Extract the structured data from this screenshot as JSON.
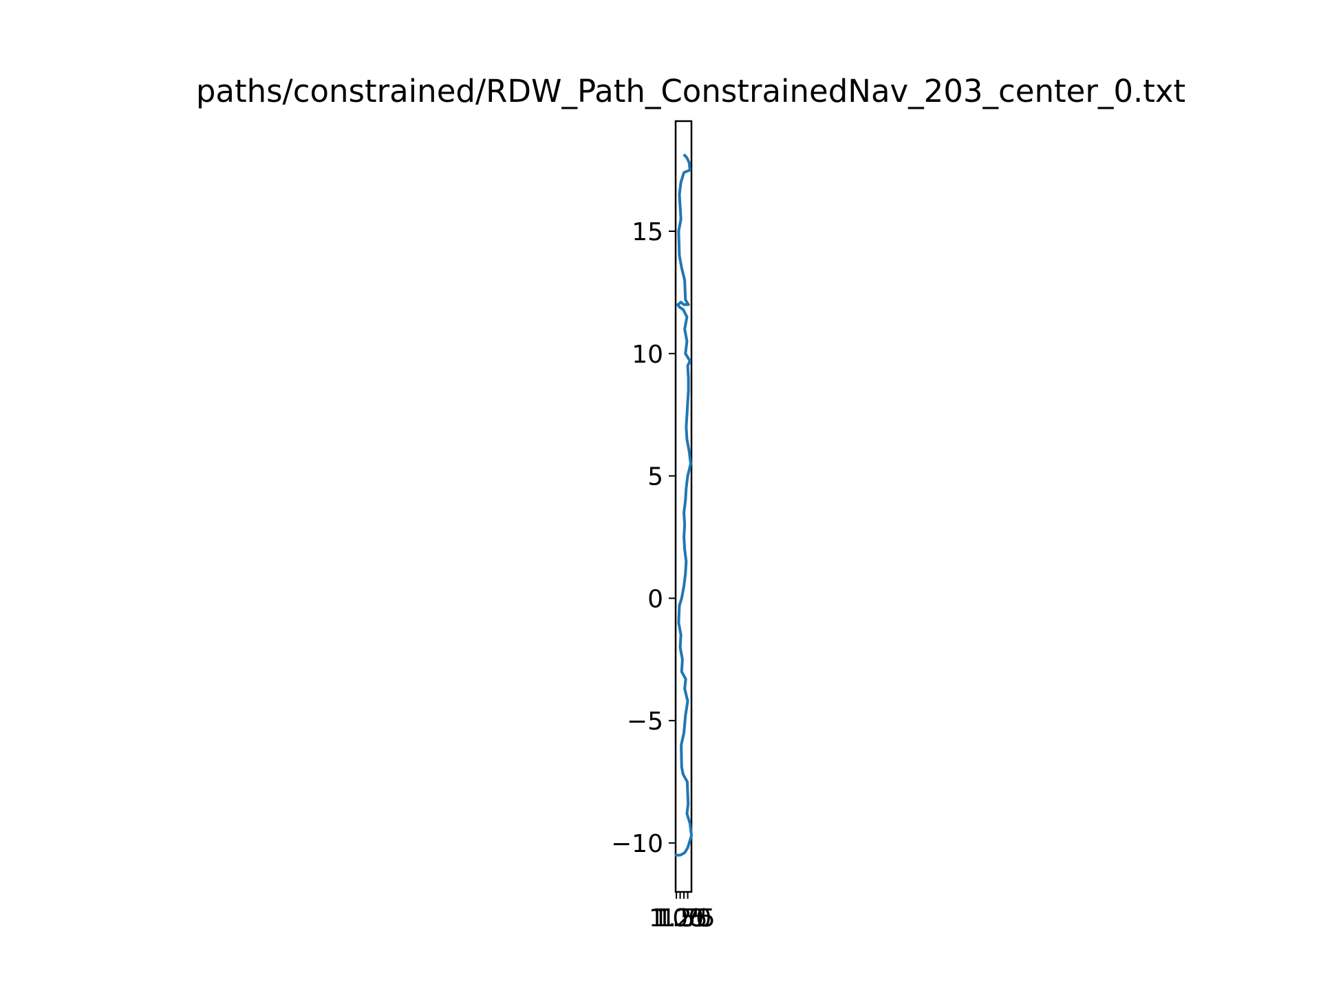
{
  "chart_data": {
    "type": "line",
    "title": "paths/constrained/RDW_Path_ConstrainedNav_203_center_0.txt",
    "xlabel": "",
    "ylabel": "",
    "xlim": [
      0.95,
      2.0
    ],
    "ylim": [
      -12.0,
      19.5
    ],
    "grid": false,
    "x_ticks": [
      {
        "value": 1.0,
        "label": "1.00"
      },
      {
        "value": 1.25,
        "label": "1.25"
      },
      {
        "value": 1.5,
        "label": "1.50"
      },
      {
        "value": 1.75,
        "label": "1.75"
      }
    ],
    "y_ticks": [
      {
        "value": -10,
        "label": "−10"
      },
      {
        "value": -5,
        "label": "−5"
      },
      {
        "value": 0,
        "label": "0"
      },
      {
        "value": 5,
        "label": "5"
      },
      {
        "value": 10,
        "label": "10"
      },
      {
        "value": 15,
        "label": "15"
      }
    ],
    "series": [
      {
        "color": "#1f77b4",
        "points": [
          [
            1.0,
            -10.5
          ],
          [
            1.25,
            -10.5
          ],
          [
            1.55,
            -10.4
          ],
          [
            1.75,
            -10.2
          ],
          [
            1.9,
            -9.9
          ],
          [
            2.0,
            -9.7
          ],
          [
            1.9,
            -9.2
          ],
          [
            1.7,
            -8.8
          ],
          [
            1.78,
            -8.4
          ],
          [
            1.72,
            -7.5
          ],
          [
            1.45,
            -7.2
          ],
          [
            1.35,
            -6.9
          ],
          [
            1.32,
            -6.0
          ],
          [
            1.5,
            -5.5
          ],
          [
            1.6,
            -4.8
          ],
          [
            1.75,
            -4.2
          ],
          [
            1.55,
            -3.7
          ],
          [
            1.62,
            -3.3
          ],
          [
            1.35,
            -3.0
          ],
          [
            1.4,
            -2.5
          ],
          [
            1.25,
            -2.0
          ],
          [
            1.3,
            -1.5
          ],
          [
            1.15,
            -1.0
          ],
          [
            1.2,
            -0.3
          ],
          [
            1.35,
            0.0
          ],
          [
            1.5,
            0.5
          ],
          [
            1.6,
            1.0
          ],
          [
            1.65,
            1.5
          ],
          [
            1.55,
            2.0
          ],
          [
            1.5,
            2.5
          ],
          [
            1.55,
            3.0
          ],
          [
            1.5,
            3.5
          ],
          [
            1.6,
            4.0
          ],
          [
            1.65,
            4.5
          ],
          [
            1.75,
            5.0
          ],
          [
            1.95,
            5.5
          ],
          [
            1.85,
            6.0
          ],
          [
            1.7,
            6.5
          ],
          [
            1.65,
            7.0
          ],
          [
            1.7,
            7.5
          ],
          [
            1.75,
            8.0
          ],
          [
            1.8,
            8.5
          ],
          [
            1.8,
            9.0
          ],
          [
            1.75,
            9.5
          ],
          [
            1.9,
            9.7
          ],
          [
            1.6,
            10.0
          ],
          [
            1.7,
            10.5
          ],
          [
            1.55,
            11.0
          ],
          [
            1.7,
            11.5
          ],
          [
            1.45,
            11.8
          ],
          [
            1.2,
            11.9
          ],
          [
            1.1,
            12.0
          ],
          [
            1.3,
            12.1
          ],
          [
            1.5,
            12.0
          ],
          [
            1.8,
            12.0
          ],
          [
            1.6,
            12.2
          ],
          [
            1.55,
            13.0
          ],
          [
            1.35,
            13.5
          ],
          [
            1.2,
            14.0
          ],
          [
            1.15,
            15.0
          ],
          [
            1.3,
            15.5
          ],
          [
            1.2,
            16.5
          ],
          [
            1.3,
            17.0
          ],
          [
            1.5,
            17.4
          ],
          [
            1.9,
            17.5
          ],
          [
            1.85,
            17.8
          ],
          [
            1.7,
            18.0
          ],
          [
            1.55,
            18.1
          ]
        ]
      }
    ]
  }
}
